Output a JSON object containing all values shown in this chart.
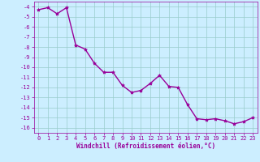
{
  "x": [
    0,
    1,
    2,
    3,
    4,
    5,
    6,
    7,
    8,
    9,
    10,
    11,
    12,
    13,
    14,
    15,
    16,
    17,
    18,
    19,
    20,
    21,
    22,
    23
  ],
  "y": [
    -4.3,
    -4.1,
    -4.7,
    -4.1,
    -7.8,
    -8.2,
    -9.6,
    -10.5,
    -10.5,
    -11.8,
    -12.5,
    -12.3,
    -11.6,
    -10.8,
    -11.9,
    -12.0,
    -13.7,
    -15.1,
    -15.2,
    -15.1,
    -15.3,
    -15.6,
    -15.4,
    -15.0
  ],
  "line_color": "#990099",
  "marker": "*",
  "bg_color": "#cceeff",
  "grid_color": "#99cccc",
  "xlabel": "Windchill (Refroidissement éolien,°C)",
  "xlabel_color": "#990099",
  "tick_color": "#990099",
  "ylim": [
    -16.5,
    -3.5
  ],
  "xlim": [
    -0.5,
    23.5
  ],
  "yticks": [
    -16,
    -15,
    -14,
    -13,
    -12,
    -11,
    -10,
    -9,
    -8,
    -7,
    -6,
    -5,
    -4
  ],
  "xticks": [
    0,
    1,
    2,
    3,
    4,
    5,
    6,
    7,
    8,
    9,
    10,
    11,
    12,
    13,
    14,
    15,
    16,
    17,
    18,
    19,
    20,
    21,
    22,
    23
  ],
  "marker_size": 3,
  "line_width": 1.0,
  "tick_fontsize": 5,
  "xlabel_fontsize": 5.5
}
